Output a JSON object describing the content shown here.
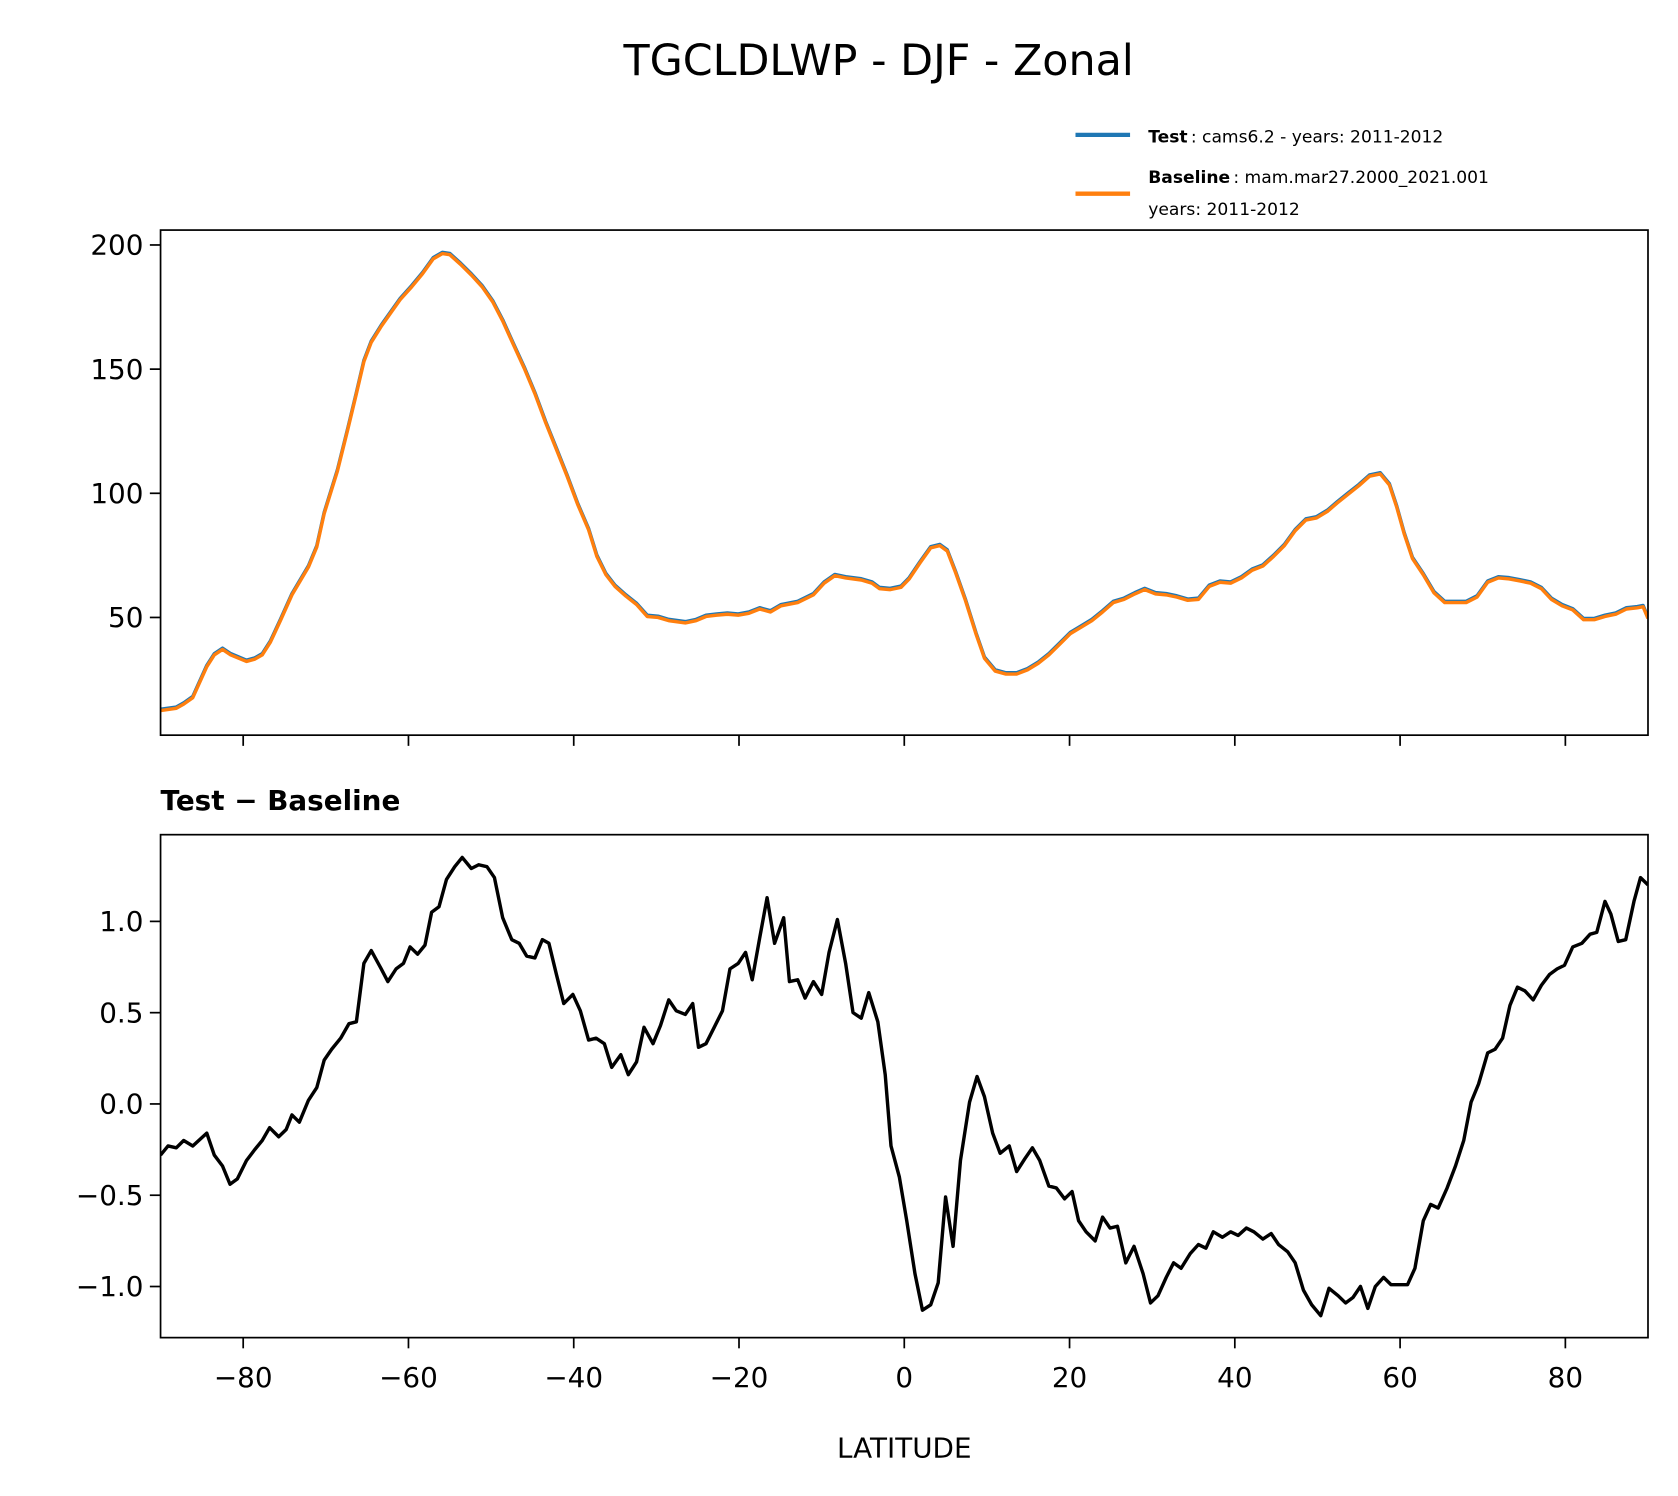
{
  "chart_data": [
    {
      "type": "line",
      "title": "TGCLDLWP - DJF - Zonal",
      "xlabel": "",
      "ylabel": "",
      "xlim": [
        -90,
        90
      ],
      "ylim": [
        2.6,
        206
      ],
      "grid": false,
      "legend_placement": "top-right (above axes)",
      "xticks": [
        -80,
        -60,
        -40,
        -20,
        0,
        20,
        40,
        60,
        80
      ],
      "yticks": [
        50,
        100,
        150,
        200
      ],
      "ytick_labels": [
        "50",
        "100",
        "150",
        "200"
      ],
      "legend": [
        {
          "bold": "Test",
          "text": ": cams6.2 - years: 2011-2012",
          "color": "#1f77b4"
        },
        {
          "bold": "Baseline",
          "text": ": mam.mar27.2000_2021.001",
          "text2": "years: 2011-2012",
          "color": "#ff7f0e"
        }
      ],
      "series": [
        {
          "name": "Test",
          "color": "#1f77b4",
          "points": "same_as_baseline_plus_diff"
        },
        {
          "name": "Baseline",
          "color": "#ff7f0e"
        }
      ],
      "points": [
        [
          -90,
          12.5
        ],
        [
          -88.1,
          13.4
        ],
        [
          -87.2,
          15.1
        ],
        [
          -86.1,
          17.7
        ],
        [
          -84.4,
          30.2
        ],
        [
          -83.5,
          34.9
        ],
        [
          -82.5,
          37.1
        ],
        [
          -81.5,
          34.9
        ],
        [
          -79.6,
          32.3
        ],
        [
          -78.6,
          33.2
        ],
        [
          -77.7,
          34.9
        ],
        [
          -76.7,
          40.1
        ],
        [
          -75.5,
          48.7
        ],
        [
          -74.1,
          59.1
        ],
        [
          -72.1,
          70.3
        ],
        [
          -71.1,
          78.4
        ],
        [
          -70.2,
          91.8
        ],
        [
          -68.6,
          109.0
        ],
        [
          -67.3,
          126.3
        ],
        [
          -66.3,
          140.1
        ],
        [
          -65.4,
          153.0
        ],
        [
          -64.5,
          160.8
        ],
        [
          -63.3,
          167.2
        ],
        [
          -62.2,
          172.4
        ],
        [
          -61.0,
          178.0
        ],
        [
          -59.6,
          183.2
        ],
        [
          -58.3,
          188.4
        ],
        [
          -57.0,
          194.4
        ],
        [
          -55.9,
          196.5
        ],
        [
          -55.0,
          196.1
        ],
        [
          -53.7,
          192.2
        ],
        [
          -52.4,
          187.9
        ],
        [
          -51.1,
          183.2
        ],
        [
          -49.8,
          177.1
        ],
        [
          -48.6,
          169.4
        ],
        [
          -47.3,
          159.9
        ],
        [
          -46.0,
          150.4
        ],
        [
          -44.7,
          140.1
        ],
        [
          -43.4,
          128.4
        ],
        [
          -42.1,
          117.7
        ],
        [
          -40.8,
          106.9
        ],
        [
          -39.5,
          95.3
        ],
        [
          -38.2,
          85.3
        ],
        [
          -37.2,
          74.6
        ],
        [
          -36.1,
          67.2
        ],
        [
          -35.0,
          62.5
        ],
        [
          -33.7,
          58.6
        ],
        [
          -32.4,
          55.2
        ],
        [
          -31.1,
          50.4
        ],
        [
          -29.8,
          50.0
        ],
        [
          -28.5,
          48.7
        ],
        [
          -26.5,
          47.8
        ],
        [
          -25.2,
          48.7
        ],
        [
          -24.0,
          50.4
        ],
        [
          -22.7,
          50.9
        ],
        [
          -21.4,
          51.3
        ],
        [
          -20.1,
          50.9
        ],
        [
          -18.8,
          51.7
        ],
        [
          -17.5,
          53.4
        ],
        [
          -16.2,
          52.2
        ],
        [
          -14.9,
          54.7
        ],
        [
          -12.9,
          56.0
        ],
        [
          -11.0,
          59.1
        ],
        [
          -9.7,
          63.8
        ],
        [
          -8.4,
          66.8
        ],
        [
          -7.1,
          65.9
        ],
        [
          -5.2,
          65.1
        ],
        [
          -3.9,
          63.8
        ],
        [
          -3.0,
          61.6
        ],
        [
          -1.7,
          61.2
        ],
        [
          -0.4,
          62.1
        ],
        [
          0.6,
          65.5
        ],
        [
          1.9,
          72.0
        ],
        [
          3.2,
          78.0
        ],
        [
          4.3,
          78.9
        ],
        [
          5.2,
          76.7
        ],
        [
          6.2,
          68.1
        ],
        [
          7.4,
          56.9
        ],
        [
          8.7,
          43.1
        ],
        [
          9.7,
          33.6
        ],
        [
          11.0,
          28.4
        ],
        [
          12.3,
          27.2
        ],
        [
          13.6,
          27.2
        ],
        [
          14.9,
          28.9
        ],
        [
          16.2,
          31.5
        ],
        [
          17.5,
          34.9
        ],
        [
          18.8,
          39.2
        ],
        [
          20.1,
          43.5
        ],
        [
          21.4,
          46.1
        ],
        [
          22.7,
          48.7
        ],
        [
          24.0,
          52.2
        ],
        [
          25.3,
          56.0
        ],
        [
          26.6,
          57.3
        ],
        [
          27.9,
          59.5
        ],
        [
          29.1,
          61.2
        ],
        [
          30.4,
          59.5
        ],
        [
          31.7,
          59.1
        ],
        [
          33.0,
          58.2
        ],
        [
          34.3,
          56.9
        ],
        [
          35.6,
          57.3
        ],
        [
          36.9,
          62.5
        ],
        [
          38.2,
          64.2
        ],
        [
          39.5,
          63.8
        ],
        [
          40.8,
          65.9
        ],
        [
          42.1,
          69.0
        ],
        [
          43.4,
          70.7
        ],
        [
          44.7,
          74.6
        ],
        [
          46.0,
          78.9
        ],
        [
          47.3,
          84.9
        ],
        [
          48.6,
          89.2
        ],
        [
          49.9,
          90.1
        ],
        [
          51.2,
          92.7
        ],
        [
          52.4,
          96.1
        ],
        [
          53.7,
          99.6
        ],
        [
          55.0,
          103.0
        ],
        [
          56.3,
          106.9
        ],
        [
          57.6,
          107.8
        ],
        [
          58.7,
          103.4
        ],
        [
          59.6,
          94.4
        ],
        [
          60.5,
          83.6
        ],
        [
          61.5,
          73.7
        ],
        [
          62.8,
          67.2
        ],
        [
          64.1,
          59.9
        ],
        [
          65.4,
          56.0
        ],
        [
          66.7,
          56.0
        ],
        [
          68.0,
          56.0
        ],
        [
          69.3,
          58.2
        ],
        [
          70.6,
          64.2
        ],
        [
          71.9,
          65.9
        ],
        [
          73.2,
          65.5
        ],
        [
          74.5,
          64.7
        ],
        [
          75.8,
          63.8
        ],
        [
          77.1,
          61.6
        ],
        [
          78.3,
          57.3
        ],
        [
          79.6,
          54.7
        ],
        [
          80.9,
          53.0
        ],
        [
          82.2,
          49.1
        ],
        [
          83.5,
          49.1
        ],
        [
          84.8,
          50.4
        ],
        [
          86.1,
          51.3
        ],
        [
          87.4,
          53.4
        ],
        [
          88.7,
          53.9
        ],
        [
          89.4,
          54.3
        ],
        [
          90.0,
          49.6
        ]
      ]
    },
    {
      "type": "line",
      "title": "Test − Baseline",
      "xlabel": "LATITUDE",
      "xlim": [
        -90,
        90
      ],
      "ylim": [
        -1.28,
        1.475
      ],
      "grid": false,
      "color": "#000000",
      "xticks": [
        -80,
        -60,
        -40,
        -20,
        0,
        20,
        40,
        60,
        80
      ],
      "xtick_labels": [
        "−80",
        "−60",
        "−40",
        "−20",
        "0",
        "20",
        "40",
        "60",
        "80"
      ],
      "yticks": [
        -1.0,
        -0.5,
        0.0,
        0.5,
        1.0
      ],
      "ytick_labels": [
        "−1.0",
        "−0.5",
        "0.0",
        "0.5",
        "1.0"
      ],
      "points": [
        [
          -90,
          -0.28
        ],
        [
          -89.1,
          -0.23
        ],
        [
          -88.1,
          -0.24
        ],
        [
          -87.2,
          -0.2
        ],
        [
          -86.1,
          -0.23
        ],
        [
          -84.4,
          -0.16
        ],
        [
          -83.5,
          -0.28
        ],
        [
          -82.5,
          -0.34
        ],
        [
          -81.6,
          -0.44
        ],
        [
          -80.7,
          -0.41
        ],
        [
          -79.6,
          -0.31
        ],
        [
          -78.6,
          -0.25
        ],
        [
          -77.7,
          -0.2
        ],
        [
          -76.8,
          -0.13
        ],
        [
          -75.7,
          -0.18
        ],
        [
          -74.8,
          -0.14
        ],
        [
          -74.1,
          -0.06
        ],
        [
          -73.2,
          -0.1
        ],
        [
          -72.1,
          0.02
        ],
        [
          -71.1,
          0.09
        ],
        [
          -70.2,
          0.24
        ],
        [
          -69.3,
          0.3
        ],
        [
          -68.2,
          0.36
        ],
        [
          -67.2,
          0.44
        ],
        [
          -66.3,
          0.45
        ],
        [
          -65.4,
          0.77
        ],
        [
          -64.5,
          0.84
        ],
        [
          -63.3,
          0.74
        ],
        [
          -62.5,
          0.67
        ],
        [
          -61.5,
          0.74
        ],
        [
          -60.6,
          0.77
        ],
        [
          -59.8,
          0.86
        ],
        [
          -58.9,
          0.82
        ],
        [
          -58.0,
          0.87
        ],
        [
          -57.2,
          1.05
        ],
        [
          -56.3,
          1.08
        ],
        [
          -55.4,
          1.23
        ],
        [
          -54.4,
          1.3
        ],
        [
          -53.5,
          1.35
        ],
        [
          -52.4,
          1.29
        ],
        [
          -51.5,
          1.31
        ],
        [
          -50.5,
          1.3
        ],
        [
          -49.6,
          1.24
        ],
        [
          -48.6,
          1.02
        ],
        [
          -47.5,
          0.9
        ],
        [
          -46.6,
          0.88
        ],
        [
          -45.7,
          0.81
        ],
        [
          -44.7,
          0.8
        ],
        [
          -43.8,
          0.9
        ],
        [
          -43.0,
          0.88
        ],
        [
          -42.1,
          0.71
        ],
        [
          -41.2,
          0.55
        ],
        [
          -40.1,
          0.6
        ],
        [
          -39.2,
          0.51
        ],
        [
          -38.2,
          0.35
        ],
        [
          -37.3,
          0.36
        ],
        [
          -36.3,
          0.33
        ],
        [
          -35.4,
          0.2
        ],
        [
          -34.3,
          0.27
        ],
        [
          -33.4,
          0.16
        ],
        [
          -32.4,
          0.23
        ],
        [
          -31.5,
          0.42
        ],
        [
          -30.4,
          0.33
        ],
        [
          -29.5,
          0.43
        ],
        [
          -28.5,
          0.57
        ],
        [
          -27.6,
          0.51
        ],
        [
          -26.5,
          0.49
        ],
        [
          -25.6,
          0.55
        ],
        [
          -24.9,
          0.31
        ],
        [
          -24.0,
          0.33
        ],
        [
          -23.0,
          0.42
        ],
        [
          -22.0,
          0.51
        ],
        [
          -21.1,
          0.74
        ],
        [
          -20.1,
          0.77
        ],
        [
          -19.2,
          0.83
        ],
        [
          -18.4,
          0.68
        ],
        [
          -17.5,
          0.91
        ],
        [
          -16.6,
          1.13
        ],
        [
          -15.7,
          0.88
        ],
        [
          -14.6,
          1.02
        ],
        [
          -13.9,
          0.67
        ],
        [
          -12.9,
          0.68
        ],
        [
          -12.0,
          0.58
        ],
        [
          -11.0,
          0.67
        ],
        [
          -10.0,
          0.6
        ],
        [
          -9.1,
          0.83
        ],
        [
          -8.1,
          1.01
        ],
        [
          -7.1,
          0.77
        ],
        [
          -6.2,
          0.5
        ],
        [
          -5.2,
          0.47
        ],
        [
          -4.3,
          0.61
        ],
        [
          -3.2,
          0.45
        ],
        [
          -2.3,
          0.16
        ],
        [
          -1.6,
          -0.23
        ],
        [
          -0.6,
          -0.4
        ],
        [
          0.3,
          -0.64
        ],
        [
          1.3,
          -0.93
        ],
        [
          2.2,
          -1.13
        ],
        [
          3.2,
          -1.1
        ],
        [
          4.1,
          -0.98
        ],
        [
          5.0,
          -0.51
        ],
        [
          5.9,
          -0.78
        ],
        [
          6.8,
          -0.31
        ],
        [
          7.9,
          0.01
        ],
        [
          8.8,
          0.15
        ],
        [
          9.7,
          0.04
        ],
        [
          10.7,
          -0.16
        ],
        [
          11.6,
          -0.27
        ],
        [
          12.7,
          -0.23
        ],
        [
          13.6,
          -0.37
        ],
        [
          14.6,
          -0.3
        ],
        [
          15.5,
          -0.24
        ],
        [
          16.4,
          -0.31
        ],
        [
          17.5,
          -0.45
        ],
        [
          18.4,
          -0.46
        ],
        [
          19.4,
          -0.52
        ],
        [
          20.3,
          -0.48
        ],
        [
          21.1,
          -0.64
        ],
        [
          22.0,
          -0.7
        ],
        [
          23.1,
          -0.75
        ],
        [
          24.0,
          -0.62
        ],
        [
          24.9,
          -0.68
        ],
        [
          25.8,
          -0.67
        ],
        [
          26.8,
          -0.87
        ],
        [
          27.8,
          -0.78
        ],
        [
          28.9,
          -0.93
        ],
        [
          29.8,
          -1.09
        ],
        [
          30.7,
          -1.05
        ],
        [
          31.7,
          -0.95
        ],
        [
          32.6,
          -0.87
        ],
        [
          33.5,
          -0.9
        ],
        [
          34.6,
          -0.82
        ],
        [
          35.6,
          -0.77
        ],
        [
          36.5,
          -0.79
        ],
        [
          37.4,
          -0.7
        ],
        [
          38.5,
          -0.73
        ],
        [
          39.5,
          -0.7
        ],
        [
          40.4,
          -0.72
        ],
        [
          41.4,
          -0.68
        ],
        [
          42.3,
          -0.7
        ],
        [
          43.4,
          -0.74
        ],
        [
          44.4,
          -0.71
        ],
        [
          45.3,
          -0.77
        ],
        [
          46.4,
          -0.81
        ],
        [
          47.3,
          -0.87
        ],
        [
          48.3,
          -1.02
        ],
        [
          49.3,
          -1.1
        ],
        [
          50.4,
          -1.16
        ],
        [
          51.4,
          -1.01
        ],
        [
          52.5,
          -1.05
        ],
        [
          53.4,
          -1.09
        ],
        [
          54.3,
          -1.06
        ],
        [
          55.2,
          -1.0
        ],
        [
          56.1,
          -1.12
        ],
        [
          57.0,
          -1.0
        ],
        [
          58.0,
          -0.95
        ],
        [
          58.9,
          -0.99
        ],
        [
          60.0,
          -0.99
        ],
        [
          60.9,
          -0.99
        ],
        [
          61.8,
          -0.9
        ],
        [
          62.8,
          -0.64
        ],
        [
          63.7,
          -0.55
        ],
        [
          64.6,
          -0.57
        ],
        [
          65.7,
          -0.46
        ],
        [
          66.7,
          -0.34
        ],
        [
          67.7,
          -0.2
        ],
        [
          68.6,
          0.01
        ],
        [
          69.5,
          0.11
        ],
        [
          70.6,
          0.28
        ],
        [
          71.5,
          0.3
        ],
        [
          72.4,
          0.36
        ],
        [
          73.3,
          0.54
        ],
        [
          74.2,
          0.64
        ],
        [
          75.1,
          0.62
        ],
        [
          76.1,
          0.57
        ],
        [
          77.1,
          0.65
        ],
        [
          78.1,
          0.71
        ],
        [
          79.0,
          0.74
        ],
        [
          79.9,
          0.76
        ],
        [
          80.9,
          0.86
        ],
        [
          82.0,
          0.88
        ],
        [
          83.0,
          0.93
        ],
        [
          83.8,
          0.94
        ],
        [
          84.8,
          1.11
        ],
        [
          85.5,
          1.04
        ],
        [
          86.4,
          0.89
        ],
        [
          87.3,
          0.9
        ],
        [
          88.3,
          1.11
        ],
        [
          89.1,
          1.24
        ],
        [
          90.0,
          1.2
        ]
      ]
    }
  ]
}
